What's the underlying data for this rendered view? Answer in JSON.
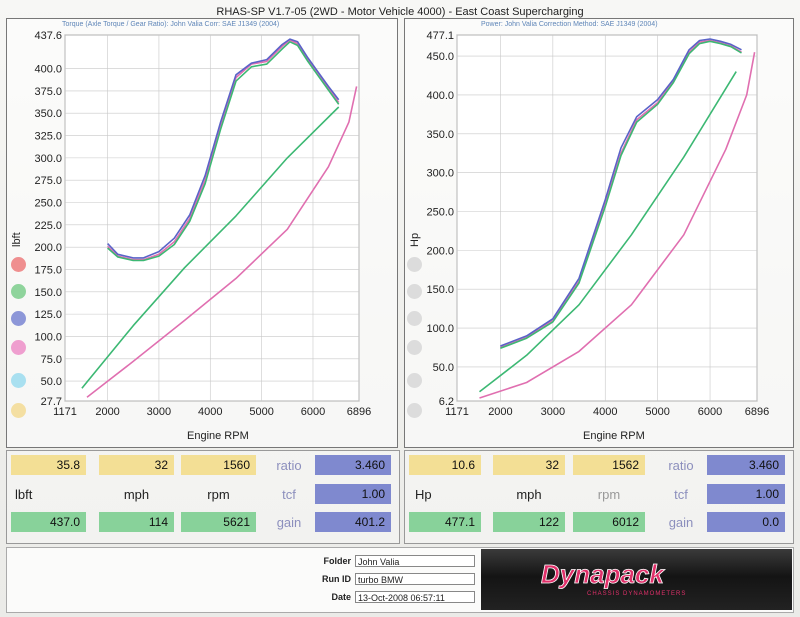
{
  "header": {
    "title": "RHAS-SP V1.7-05   (2WD - Motor Vehicle 4000) - East Coast Supercharging"
  },
  "colors": {
    "run_red": "#e34b8c",
    "run_green": "#3cb873",
    "run_blue": "#5a63c8",
    "run_pink": "#e06fb0",
    "run_cyan": "#7ad0e8"
  },
  "chart_data": [
    {
      "type": "line",
      "subtitle": "Torque (Axle Torque / Gear Ratio): John Valia     Corr: SAE J1349 (2004)",
      "xlabel": "Engine RPM",
      "ylabel": "lbft",
      "xlim": [
        1171,
        6896
      ],
      "ylim": [
        27.7,
        437.6
      ],
      "x_ticks": [
        "1171",
        "2000",
        "3000",
        "4000",
        "5000",
        "6000",
        "6896"
      ],
      "y_ticks": [
        "437.6",
        "400.0",
        "375.0",
        "350.0",
        "325.0",
        "300.0",
        "275.0",
        "250.0",
        "225.0",
        "200.0",
        "175.0",
        "150.0",
        "125.0",
        "100.0",
        "75.0",
        "50.0",
        "27.7"
      ],
      "grid": true,
      "series": [
        {
          "color": "run_pink",
          "x": [
            2000,
            2200,
            2500,
            2700,
            3000,
            3300,
            3600,
            3900,
            4200,
            4500,
            4800,
            5100,
            5400,
            5550,
            5700,
            5900,
            6100,
            6300,
            6500
          ],
          "y": [
            201,
            190,
            186,
            186,
            192,
            206,
            232,
            275,
            336,
            390,
            405,
            408,
            425,
            432,
            428,
            410,
            395,
            378,
            362
          ]
        },
        {
          "color": "run_blue",
          "x": [
            2000,
            2200,
            2500,
            2700,
            3000,
            3300,
            3600,
            3900,
            4200,
            4500,
            4800,
            5100,
            5400,
            5550,
            5700,
            5900,
            6100,
            6300,
            6500
          ],
          "y": [
            204,
            192,
            188,
            188,
            195,
            210,
            236,
            280,
            340,
            393,
            406,
            410,
            427,
            433,
            430,
            412,
            396,
            380,
            365
          ]
        },
        {
          "color": "run_green",
          "x": [
            2000,
            2200,
            2500,
            2700,
            3000,
            3300,
            3600,
            3900,
            4200,
            4500,
            4800,
            5100,
            5400,
            5550,
            5700,
            5900,
            6100,
            6300,
            6500
          ],
          "y": [
            199,
            189,
            185,
            185,
            190,
            203,
            229,
            271,
            332,
            386,
            402,
            405,
            422,
            430,
            426,
            408,
            392,
            376,
            360
          ]
        },
        {
          "color": "run_green",
          "x": [
            1500,
            2500,
            3500,
            4500,
            5500,
            6500
          ],
          "y": [
            42,
            112,
            177,
            235,
            300,
            357
          ]
        },
        {
          "color": "run_pink",
          "x": [
            1600,
            2500,
            3500,
            4500,
            5500,
            6300,
            6700,
            6850
          ],
          "y": [
            32,
            72,
            118,
            165,
            220,
            290,
            340,
            380
          ]
        }
      ]
    },
    {
      "type": "line",
      "subtitle": "Power: John Valia     Correction Method: SAE J1349 (2004)",
      "xlabel": "Engine RPM",
      "ylabel": "Hp",
      "xlim": [
        1171,
        6896
      ],
      "ylim": [
        6.2,
        477.1
      ],
      "x_ticks": [
        "1171",
        "2000",
        "3000",
        "4000",
        "5000",
        "6000",
        "6896"
      ],
      "y_ticks": [
        "477.1",
        "450.0",
        "400.0",
        "350.0",
        "300.0",
        "250.0",
        "200.0",
        "150.0",
        "100.0",
        "50.0",
        "6.2"
      ],
      "grid": true,
      "series": [
        {
          "color": "run_pink",
          "x": [
            2000,
            2500,
            3000,
            3500,
            4000,
            4300,
            4600,
            5000,
            5300,
            5600,
            5800,
            6000,
            6200,
            6400,
            6600
          ],
          "y": [
            75,
            88,
            110,
            160,
            260,
            325,
            368,
            390,
            418,
            455,
            468,
            470,
            467,
            463,
            455
          ]
        },
        {
          "color": "run_blue",
          "x": [
            2000,
            2500,
            3000,
            3500,
            4000,
            4300,
            4600,
            5000,
            5300,
            5600,
            5800,
            6000,
            6200,
            6400,
            6600
          ],
          "y": [
            77,
            90,
            112,
            164,
            265,
            332,
            372,
            394,
            420,
            458,
            470,
            472,
            469,
            465,
            458
          ]
        },
        {
          "color": "run_green",
          "x": [
            2000,
            2500,
            3000,
            3500,
            4000,
            4300,
            4600,
            5000,
            5300,
            5600,
            5800,
            6000,
            6200,
            6400,
            6600
          ],
          "y": [
            74,
            87,
            108,
            158,
            256,
            322,
            365,
            388,
            416,
            453,
            466,
            469,
            466,
            462,
            454
          ]
        },
        {
          "color": "run_green",
          "x": [
            1600,
            2500,
            3500,
            4500,
            5500,
            6500
          ],
          "y": [
            18,
            65,
            130,
            220,
            320,
            430
          ]
        },
        {
          "color": "run_pink",
          "x": [
            1600,
            2500,
            3500,
            4500,
            5500,
            6300,
            6700,
            6850
          ],
          "y": [
            10,
            30,
            70,
            130,
            220,
            330,
            400,
            455
          ]
        }
      ]
    }
  ],
  "readouts": {
    "left": {
      "start_value": "35.8",
      "start_mph": "32",
      "start_rpm": "1560",
      "ratio_label": "ratio",
      "ratio_value": "3.460",
      "unit_label": "lbft",
      "mph_label": "mph",
      "rpm_label": "rpm",
      "tcf_label": "tcf",
      "tcf_value": "1.00",
      "peak_value": "437.0",
      "peak_mph": "114",
      "peak_rpm": "5621",
      "gain_label": "gain",
      "gain_value": "401.2"
    },
    "right": {
      "start_value": "10.6",
      "start_mph": "32",
      "start_rpm": "1562",
      "ratio_label": "ratio",
      "ratio_value": "3.460",
      "unit_label": "Hp",
      "mph_label": "mph",
      "rpm_label": "rpm",
      "tcf_label": "tcf",
      "tcf_value": "1.00",
      "peak_value": "477.1",
      "peak_mph": "122",
      "peak_rpm": "6012",
      "gain_label": "gain",
      "gain_value": "0.0"
    }
  },
  "footer": {
    "folder_label": "Folder",
    "folder": "John Valia",
    "run_id_label": "Run ID",
    "run_id": "turbo BMW",
    "date_label": "Date",
    "date": "13-Oct-2008  06:57:11"
  }
}
